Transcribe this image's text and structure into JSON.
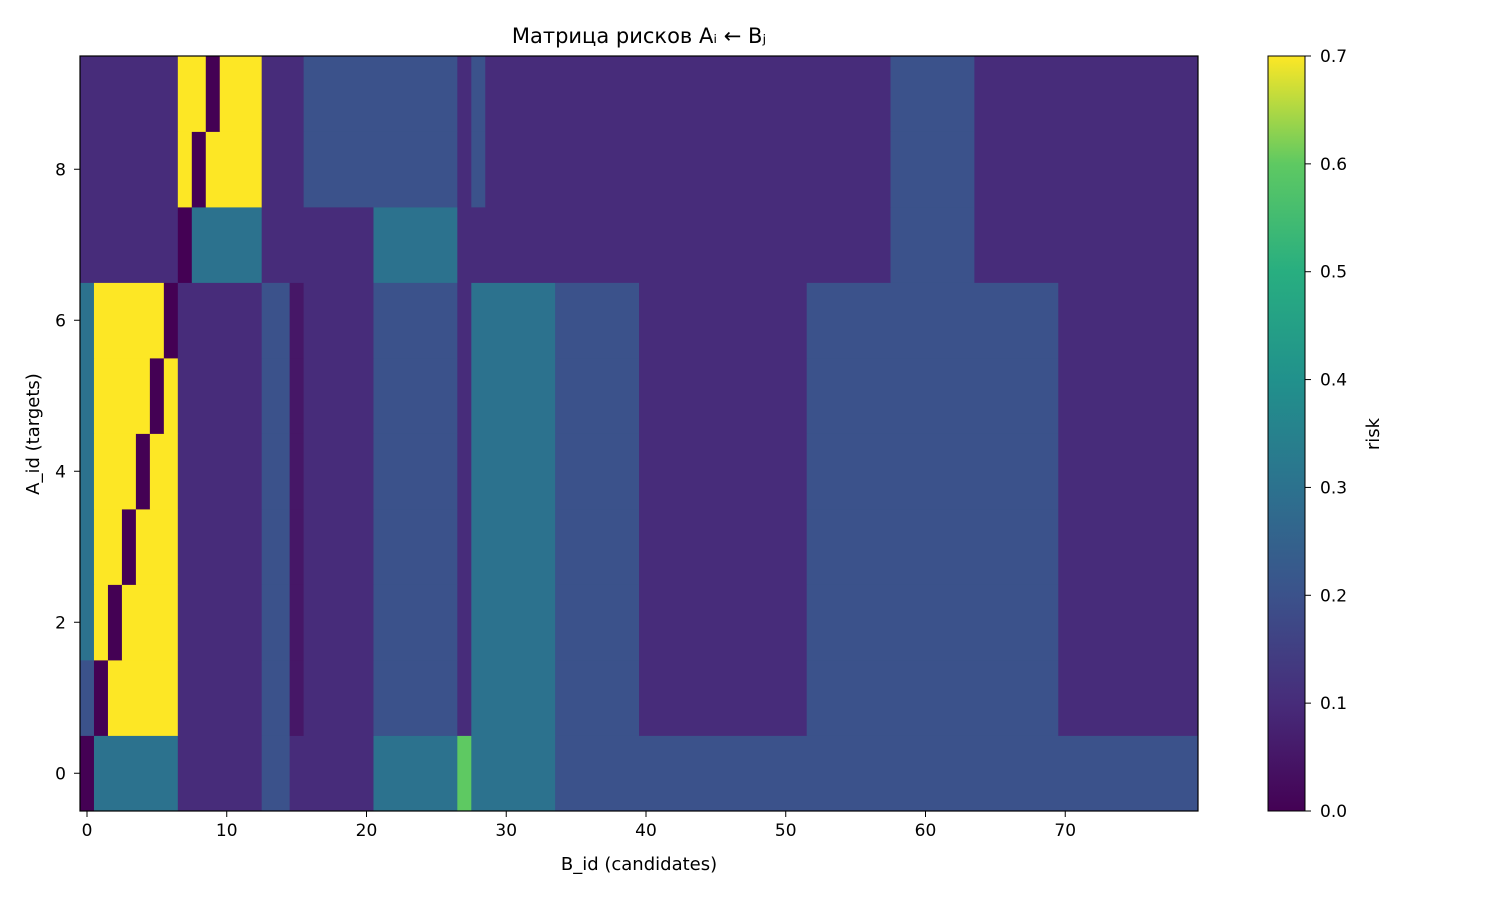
{
  "chart_data": {
    "type": "heatmap",
    "title": "Матрица рисков  Aᵢ ← Bⱼ",
    "xlabel": "B_id (candidates)",
    "ylabel": "A_id (targets)",
    "colorbar_label": "risk",
    "colormap": "viridis",
    "n_cols": 80,
    "n_rows": 10,
    "xlim": [
      -0.5,
      79.5
    ],
    "ylim": [
      -0.5,
      9.5
    ],
    "clim": [
      0,
      0.7
    ],
    "x_ticks": [
      0,
      10,
      20,
      30,
      40,
      50,
      60,
      70
    ],
    "y_ticks": [
      0,
      2,
      4,
      6,
      8
    ],
    "cbar_ticks": [
      "0.0",
      "0.1",
      "0.2",
      "0.3",
      "0.4",
      "0.5",
      "0.6",
      "0.7"
    ],
    "rows": [
      {
        "row": 0,
        "segments": [
          [
            0,
            0,
            0.0
          ],
          [
            1,
            6,
            0.3
          ],
          [
            7,
            12,
            0.1
          ],
          [
            13,
            14,
            0.2
          ],
          [
            15,
            20,
            0.1
          ],
          [
            21,
            26,
            0.3
          ],
          [
            27,
            27,
            0.6
          ],
          [
            28,
            33,
            0.3
          ],
          [
            34,
            79,
            0.2
          ]
        ]
      },
      {
        "row": 1,
        "segments": [
          [
            0,
            0,
            0.2
          ],
          [
            1,
            1,
            0.0
          ],
          [
            2,
            6,
            0.7
          ],
          [
            7,
            12,
            0.1
          ],
          [
            13,
            14,
            0.2
          ],
          [
            15,
            15,
            0.05
          ],
          [
            16,
            20,
            0.1
          ],
          [
            21,
            26,
            0.2
          ],
          [
            27,
            27,
            0.1
          ],
          [
            28,
            33,
            0.3
          ],
          [
            34,
            39,
            0.2
          ],
          [
            40,
            51,
            0.1
          ],
          [
            52,
            69,
            0.2
          ],
          [
            70,
            79,
            0.1
          ]
        ]
      },
      {
        "row": 2,
        "segments": [
          [
            0,
            0,
            0.3
          ],
          [
            1,
            1,
            0.7
          ],
          [
            2,
            2,
            0.0
          ],
          [
            3,
            6,
            0.7
          ],
          [
            7,
            12,
            0.1
          ],
          [
            13,
            14,
            0.2
          ],
          [
            15,
            15,
            0.05
          ],
          [
            16,
            20,
            0.1
          ],
          [
            21,
            26,
            0.2
          ],
          [
            27,
            27,
            0.1
          ],
          [
            28,
            33,
            0.3
          ],
          [
            34,
            39,
            0.2
          ],
          [
            40,
            51,
            0.1
          ],
          [
            52,
            69,
            0.2
          ],
          [
            70,
            79,
            0.1
          ]
        ]
      },
      {
        "row": 3,
        "segments": [
          [
            0,
            0,
            0.3
          ],
          [
            1,
            2,
            0.7
          ],
          [
            3,
            3,
            0.0
          ],
          [
            4,
            6,
            0.7
          ],
          [
            7,
            12,
            0.1
          ],
          [
            13,
            14,
            0.2
          ],
          [
            15,
            15,
            0.05
          ],
          [
            16,
            20,
            0.1
          ],
          [
            21,
            26,
            0.2
          ],
          [
            27,
            27,
            0.1
          ],
          [
            28,
            33,
            0.3
          ],
          [
            34,
            39,
            0.2
          ],
          [
            40,
            51,
            0.1
          ],
          [
            52,
            69,
            0.2
          ],
          [
            70,
            79,
            0.1
          ]
        ]
      },
      {
        "row": 4,
        "segments": [
          [
            0,
            0,
            0.3
          ],
          [
            1,
            3,
            0.7
          ],
          [
            4,
            4,
            0.0
          ],
          [
            5,
            6,
            0.7
          ],
          [
            7,
            12,
            0.1
          ],
          [
            13,
            14,
            0.2
          ],
          [
            15,
            15,
            0.05
          ],
          [
            16,
            20,
            0.1
          ],
          [
            21,
            26,
            0.2
          ],
          [
            27,
            27,
            0.1
          ],
          [
            28,
            33,
            0.3
          ],
          [
            34,
            39,
            0.2
          ],
          [
            40,
            51,
            0.1
          ],
          [
            52,
            69,
            0.2
          ],
          [
            70,
            79,
            0.1
          ]
        ]
      },
      {
        "row": 5,
        "segments": [
          [
            0,
            0,
            0.3
          ],
          [
            1,
            4,
            0.7
          ],
          [
            5,
            5,
            0.0
          ],
          [
            6,
            6,
            0.7
          ],
          [
            7,
            12,
            0.1
          ],
          [
            13,
            14,
            0.2
          ],
          [
            15,
            15,
            0.05
          ],
          [
            16,
            20,
            0.1
          ],
          [
            21,
            26,
            0.2
          ],
          [
            27,
            27,
            0.1
          ],
          [
            28,
            33,
            0.3
          ],
          [
            34,
            39,
            0.2
          ],
          [
            40,
            51,
            0.1
          ],
          [
            52,
            69,
            0.2
          ],
          [
            70,
            79,
            0.1
          ]
        ]
      },
      {
        "row": 6,
        "segments": [
          [
            0,
            0,
            0.3
          ],
          [
            1,
            5,
            0.7
          ],
          [
            6,
            6,
            0.0
          ],
          [
            7,
            12,
            0.1
          ],
          [
            13,
            14,
            0.2
          ],
          [
            15,
            15,
            0.05
          ],
          [
            16,
            20,
            0.1
          ],
          [
            21,
            26,
            0.2
          ],
          [
            27,
            27,
            0.1
          ],
          [
            28,
            33,
            0.3
          ],
          [
            34,
            39,
            0.2
          ],
          [
            40,
            51,
            0.1
          ],
          [
            52,
            69,
            0.2
          ],
          [
            70,
            79,
            0.1
          ]
        ]
      },
      {
        "row": 7,
        "segments": [
          [
            0,
            6,
            0.1
          ],
          [
            7,
            7,
            0.0
          ],
          [
            8,
            12,
            0.3
          ],
          [
            13,
            20,
            0.1
          ],
          [
            21,
            26,
            0.3
          ],
          [
            27,
            57,
            0.1
          ],
          [
            58,
            63,
            0.2
          ],
          [
            64,
            79,
            0.1
          ]
        ]
      },
      {
        "row": 8,
        "segments": [
          [
            0,
            6,
            0.1
          ],
          [
            7,
            7,
            0.7
          ],
          [
            8,
            8,
            0.0
          ],
          [
            9,
            12,
            0.7
          ],
          [
            13,
            15,
            0.1
          ],
          [
            16,
            26,
            0.2
          ],
          [
            27,
            27,
            0.1
          ],
          [
            28,
            28,
            0.2
          ],
          [
            29,
            57,
            0.1
          ],
          [
            58,
            63,
            0.2
          ],
          [
            64,
            79,
            0.1
          ]
        ]
      },
      {
        "row": 9,
        "segments": [
          [
            0,
            6,
            0.1
          ],
          [
            7,
            8,
            0.7
          ],
          [
            9,
            9,
            0.0
          ],
          [
            10,
            12,
            0.7
          ],
          [
            13,
            15,
            0.1
          ],
          [
            16,
            26,
            0.2
          ],
          [
            27,
            27,
            0.1
          ],
          [
            28,
            28,
            0.2
          ],
          [
            29,
            57,
            0.1
          ],
          [
            58,
            63,
            0.2
          ],
          [
            64,
            79,
            0.1
          ]
        ]
      }
    ]
  }
}
